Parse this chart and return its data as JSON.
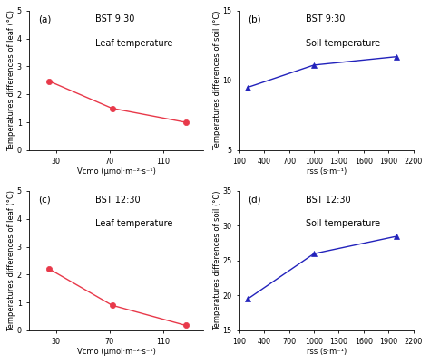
{
  "subplots": [
    {
      "label": "(a)",
      "time": "BST 9:30",
      "subtitle": "Leaf temperature",
      "x": [
        25,
        72,
        127
      ],
      "y": [
        2.47,
        1.5,
        1.0
      ],
      "color": "#e8394a",
      "marker": "o",
      "xlabel": "Vcmo (μmol·m⁻²·s⁻¹)",
      "ylabel": "Temperatures differences of leaf (°C)",
      "xlim": [
        10,
        140
      ],
      "ylim": [
        0,
        5
      ],
      "xticks": [
        30,
        70,
        110
      ],
      "yticks": [
        0,
        1,
        2,
        3,
        4,
        5
      ]
    },
    {
      "label": "(b)",
      "time": "BST 9:30",
      "subtitle": "Soil temperature",
      "x": [
        200,
        1000,
        2000
      ],
      "y": [
        9.5,
        11.1,
        11.7
      ],
      "color": "#2222bb",
      "marker": "^",
      "xlabel": "rss (s·m⁻¹)",
      "ylabel": "Temperatures differences of soil (°C)",
      "xlim": [
        100,
        2200
      ],
      "ylim": [
        5,
        15
      ],
      "xticks": [
        100,
        400,
        700,
        1000,
        1300,
        1600,
        1900,
        2200
      ],
      "yticks": [
        5,
        10,
        15
      ]
    },
    {
      "label": "(c)",
      "time": "BST 12:30",
      "subtitle": "Leaf temperature",
      "x": [
        25,
        72,
        127
      ],
      "y": [
        2.2,
        0.9,
        0.18
      ],
      "color": "#e8394a",
      "marker": "o",
      "xlabel": "Vcmo (μmol·m⁻²·s⁻¹)",
      "ylabel": "Temperatures differences of leaf (°C)",
      "xlim": [
        10,
        140
      ],
      "ylim": [
        0,
        5
      ],
      "xticks": [
        30,
        70,
        110
      ],
      "yticks": [
        0,
        1,
        2,
        3,
        4,
        5
      ]
    },
    {
      "label": "(d)",
      "time": "BST 12:30",
      "subtitle": "Soil temperature",
      "x": [
        200,
        1000,
        2000
      ],
      "y": [
        19.5,
        26.0,
        28.5
      ],
      "color": "#2222bb",
      "marker": "^",
      "xlabel": "rss (s·m⁻¹)",
      "ylabel": "Temperatures differences of soil (°C)",
      "xlim": [
        100,
        2200
      ],
      "ylim": [
        15,
        35
      ],
      "xticks": [
        100,
        400,
        700,
        1000,
        1300,
        1600,
        1900,
        2200
      ],
      "yticks": [
        15,
        20,
        25,
        30,
        35
      ]
    }
  ],
  "bg_color": "#ffffff",
  "font_size_label": 6.0,
  "font_size_tick": 5.8,
  "font_size_annot": 7.5
}
